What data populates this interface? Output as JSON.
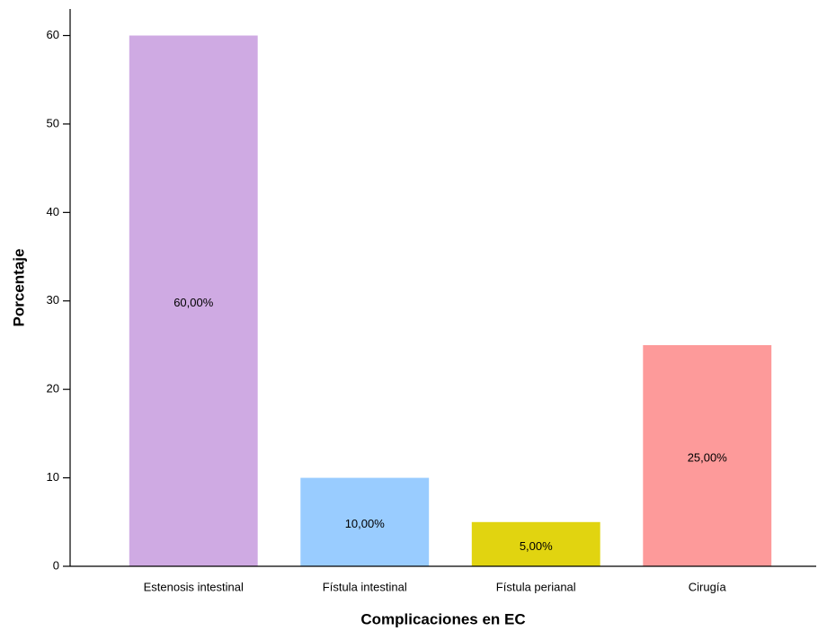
{
  "chart_data": {
    "type": "bar",
    "x_label": "Complicaciones en  EC",
    "y_label": "Porcentaje",
    "categories": [
      "Estenosis intestinal",
      "Fístula intestinal",
      "Fístula perianal",
      "Cirugía"
    ],
    "values": [
      60,
      10,
      5,
      25
    ],
    "value_labels": [
      "60,00%",
      "10,00%",
      "5,00%",
      "25,00%"
    ],
    "colors": [
      "#cfaae3",
      "#99ccff",
      "#e1d410",
      "#fd9a9a"
    ],
    "ylim": [
      0,
      63
    ],
    "yticks": [
      0,
      10,
      20,
      30,
      40,
      50,
      60
    ],
    "grid": false
  }
}
